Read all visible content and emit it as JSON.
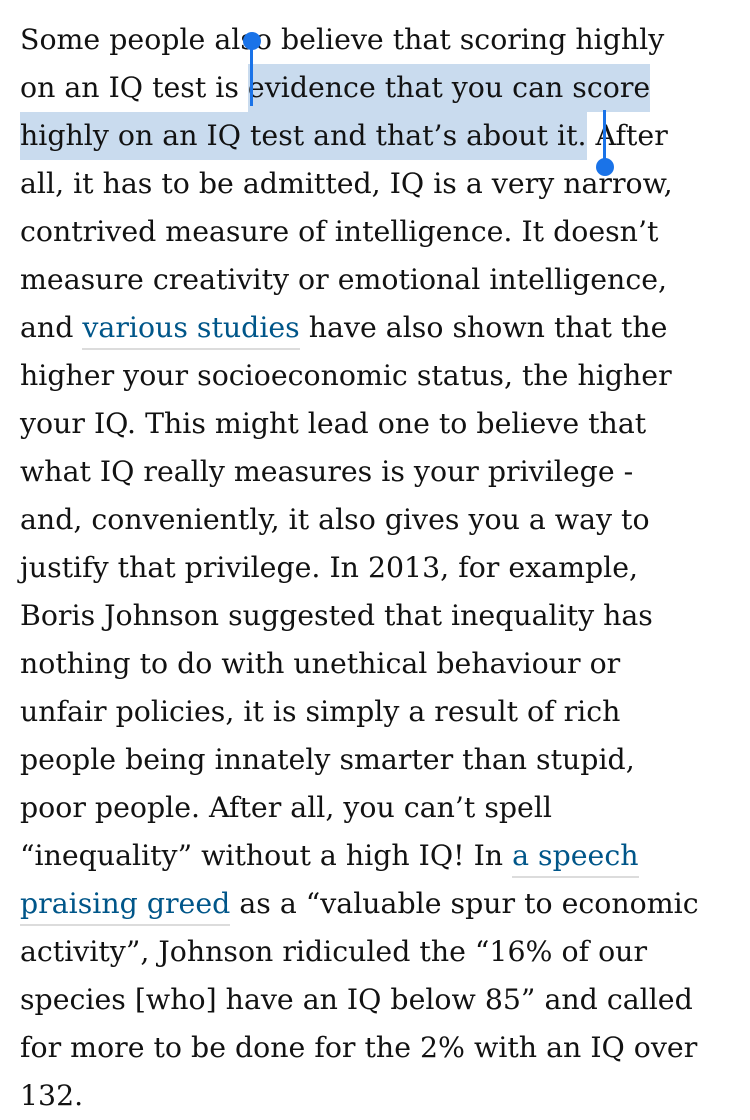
{
  "article": {
    "l1": "Some people also believe that scoring highly",
    "l2a": "on an IQ test is ",
    "l2b": "evidence that you can score",
    "l3a": "highly on an IQ test and that’s about it.",
    "l3b": " After",
    "l4": "all, it has to be admitted, IQ is a very narrow,",
    "l5": "contrived measure of intelligence. It doesn’t",
    "l6": "measure creativity or emotional intelligence,",
    "l7a": "and ",
    "link1": "various studies",
    "l7b": " have also shown that the",
    "l8": "higher your socioeconomic status, the higher",
    "l9": "your IQ. This might lead one to believe that",
    "l10": "what IQ really measures is your privilege -",
    "l11": "and, conveniently, it also gives you a way to",
    "l12": "justify that privilege. In 2013, for example,",
    "l13": "Boris Johnson suggested that inequality has",
    "l14": "nothing to do with unethical behaviour or",
    "l15": "unfair policies, it is simply a result of rich",
    "l16": "people being innately smarter than stupid,",
    "l17": "poor people. After all, you can’t spell",
    "l18a": "“inequality” without a high IQ! In ",
    "link2a": "a speech",
    "link2b": "praising greed",
    "l19b": " as a “valuable spur to economic",
    "l20": "activity”, Johnson ridiculed the “16% of our",
    "l21": "species [who] have an IQ below 85” and called",
    "l22": "for more to be done for the 2% with an IQ over",
    "l23": "132."
  },
  "colors": {
    "text": "#121212",
    "link": "#005689",
    "selection": "#c9dbee",
    "handle": "#1a73e8"
  },
  "icons": [
    "selection-start-handle-icon",
    "selection-end-handle-icon"
  ]
}
